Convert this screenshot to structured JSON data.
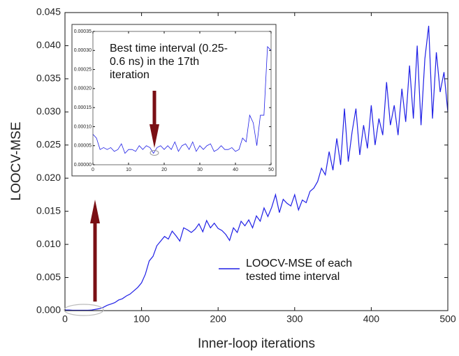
{
  "chart_data": [
    {
      "type": "line",
      "xlabel": "Inner-loop iterations",
      "ylabel": "LOOCV-MSE",
      "x": [
        0,
        5,
        10,
        15,
        20,
        25,
        30,
        35,
        40,
        45,
        50,
        55,
        60,
        65,
        70,
        75,
        80,
        85,
        90,
        95,
        100,
        105,
        110,
        115,
        120,
        125,
        130,
        135,
        140,
        145,
        150,
        155,
        160,
        165,
        170,
        175,
        180,
        185,
        190,
        195,
        200,
        205,
        210,
        215,
        220,
        225,
        230,
        235,
        240,
        245,
        250,
        255,
        260,
        265,
        270,
        275,
        280,
        285,
        290,
        295,
        300,
        305,
        310,
        315,
        320,
        325,
        330,
        335,
        340,
        345,
        350,
        355,
        360,
        365,
        370,
        375,
        380,
        385,
        390,
        395,
        400,
        405,
        410,
        415,
        420,
        425,
        430,
        435,
        440,
        445,
        450,
        455,
        460,
        465,
        470,
        475,
        480,
        485,
        490,
        495,
        500
      ],
      "series": [
        {
          "name": "LOOCV-MSE of each tested time interval",
          "color": "#1f1fe6",
          "values": [
            0.0001,
            0.0001,
            5e-05,
            5e-05,
            5e-05,
            5e-05,
            5e-05,
            0.0001,
            0.0002,
            0.0003,
            0.0005,
            0.0008,
            0.001,
            0.0012,
            0.0016,
            0.0018,
            0.0022,
            0.0025,
            0.003,
            0.0035,
            0.0042,
            0.0055,
            0.0075,
            0.0082,
            0.0098,
            0.0105,
            0.0112,
            0.0108,
            0.012,
            0.0113,
            0.0105,
            0.0125,
            0.0122,
            0.0118,
            0.0123,
            0.0131,
            0.0119,
            0.0136,
            0.0125,
            0.0132,
            0.0124,
            0.0121,
            0.0115,
            0.0106,
            0.0125,
            0.0118,
            0.0135,
            0.0128,
            0.0137,
            0.0125,
            0.0143,
            0.0135,
            0.0155,
            0.0142,
            0.0156,
            0.0175,
            0.0148,
            0.0168,
            0.0162,
            0.0158,
            0.0175,
            0.0152,
            0.0167,
            0.0163,
            0.018,
            0.0185,
            0.0195,
            0.0215,
            0.0205,
            0.024,
            0.0212,
            0.026,
            0.022,
            0.0305,
            0.0225,
            0.027,
            0.0305,
            0.0235,
            0.028,
            0.0245,
            0.031,
            0.025,
            0.029,
            0.0265,
            0.0345,
            0.028,
            0.031,
            0.0265,
            0.0335,
            0.0285,
            0.037,
            0.029,
            0.04,
            0.028,
            0.038,
            0.043,
            0.029,
            0.039,
            0.033,
            0.036,
            0.03
          ]
        }
      ],
      "xlim": [
        0,
        500
      ],
      "xticks": [
        0,
        100,
        200,
        300,
        400,
        500
      ],
      "ylim": [
        0,
        0.045
      ],
      "yticks": [
        {
          "value": 0,
          "label": "0.000"
        },
        {
          "value": 0.005,
          "label": "0.005"
        },
        {
          "value": 0.01,
          "label": "0.010"
        },
        {
          "value": 0.015,
          "label": "0.015"
        },
        {
          "value": 0.02,
          "label": "0.020"
        },
        {
          "value": 0.025,
          "label": "0.025"
        },
        {
          "value": 0.03,
          "label": "0.030"
        },
        {
          "value": 0.035,
          "label": "0.035"
        },
        {
          "value": 0.04,
          "label": "0.040"
        },
        {
          "value": 0.045,
          "label": "0.045"
        }
      ],
      "legend": "bottom-right"
    },
    {
      "type": "line",
      "annotation": "Best time interval (0.25-0.6 ns) in the 17th iteration",
      "x": [
        0,
        1,
        2,
        3,
        4,
        5,
        6,
        7,
        8,
        9,
        10,
        11,
        12,
        13,
        14,
        15,
        16,
        17,
        18,
        19,
        20,
        21,
        22,
        23,
        24,
        25,
        26,
        27,
        28,
        29,
        30,
        31,
        32,
        33,
        34,
        35,
        36,
        37,
        38,
        39,
        40,
        41,
        42,
        43,
        44,
        45,
        46,
        47,
        48,
        49,
        50
      ],
      "series": [
        {
          "color": "#1f1fe6",
          "values": [
            8e-05,
            7e-05,
            4e-05,
            4.5e-05,
            4e-05,
            4.5e-05,
            3.5e-05,
            4e-05,
            5.5e-05,
            3e-05,
            4e-05,
            4e-05,
            3.5e-05,
            5e-05,
            4e-05,
            5e-05,
            4.5e-05,
            3e-05,
            4.5e-05,
            5e-05,
            4e-05,
            5e-05,
            4e-05,
            6e-05,
            3.5e-05,
            5e-05,
            5.5e-05,
            4e-05,
            6e-05,
            3.5e-05,
            5e-05,
            4e-05,
            5e-05,
            5.5e-05,
            3.5e-05,
            4e-05,
            5e-05,
            4e-05,
            4e-05,
            4.5e-05,
            3.5e-05,
            4e-05,
            7e-05,
            6e-05,
            0.00013,
            0.00011,
            5e-05,
            0.00013,
            0.00013,
            0.00031,
            0.0003
          ]
        }
      ],
      "xlim": [
        0,
        50
      ],
      "xticks": [
        0,
        10,
        20,
        30,
        40,
        50
      ],
      "ylim": [
        0,
        0.00035
      ],
      "yticks": [
        {
          "value": 0,
          "label": "0.00000"
        },
        {
          "value": 5e-05,
          "label": "0.00005"
        },
        {
          "value": 0.0001,
          "label": "0.00010"
        },
        {
          "value": 0.00015,
          "label": "0.00015"
        },
        {
          "value": 0.0002,
          "label": "0.00020"
        },
        {
          "value": 0.00025,
          "label": "0.00025"
        },
        {
          "value": 0.0003,
          "label": "0.00030"
        },
        {
          "value": 0.00035,
          "label": "0.00035"
        }
      ]
    }
  ]
}
